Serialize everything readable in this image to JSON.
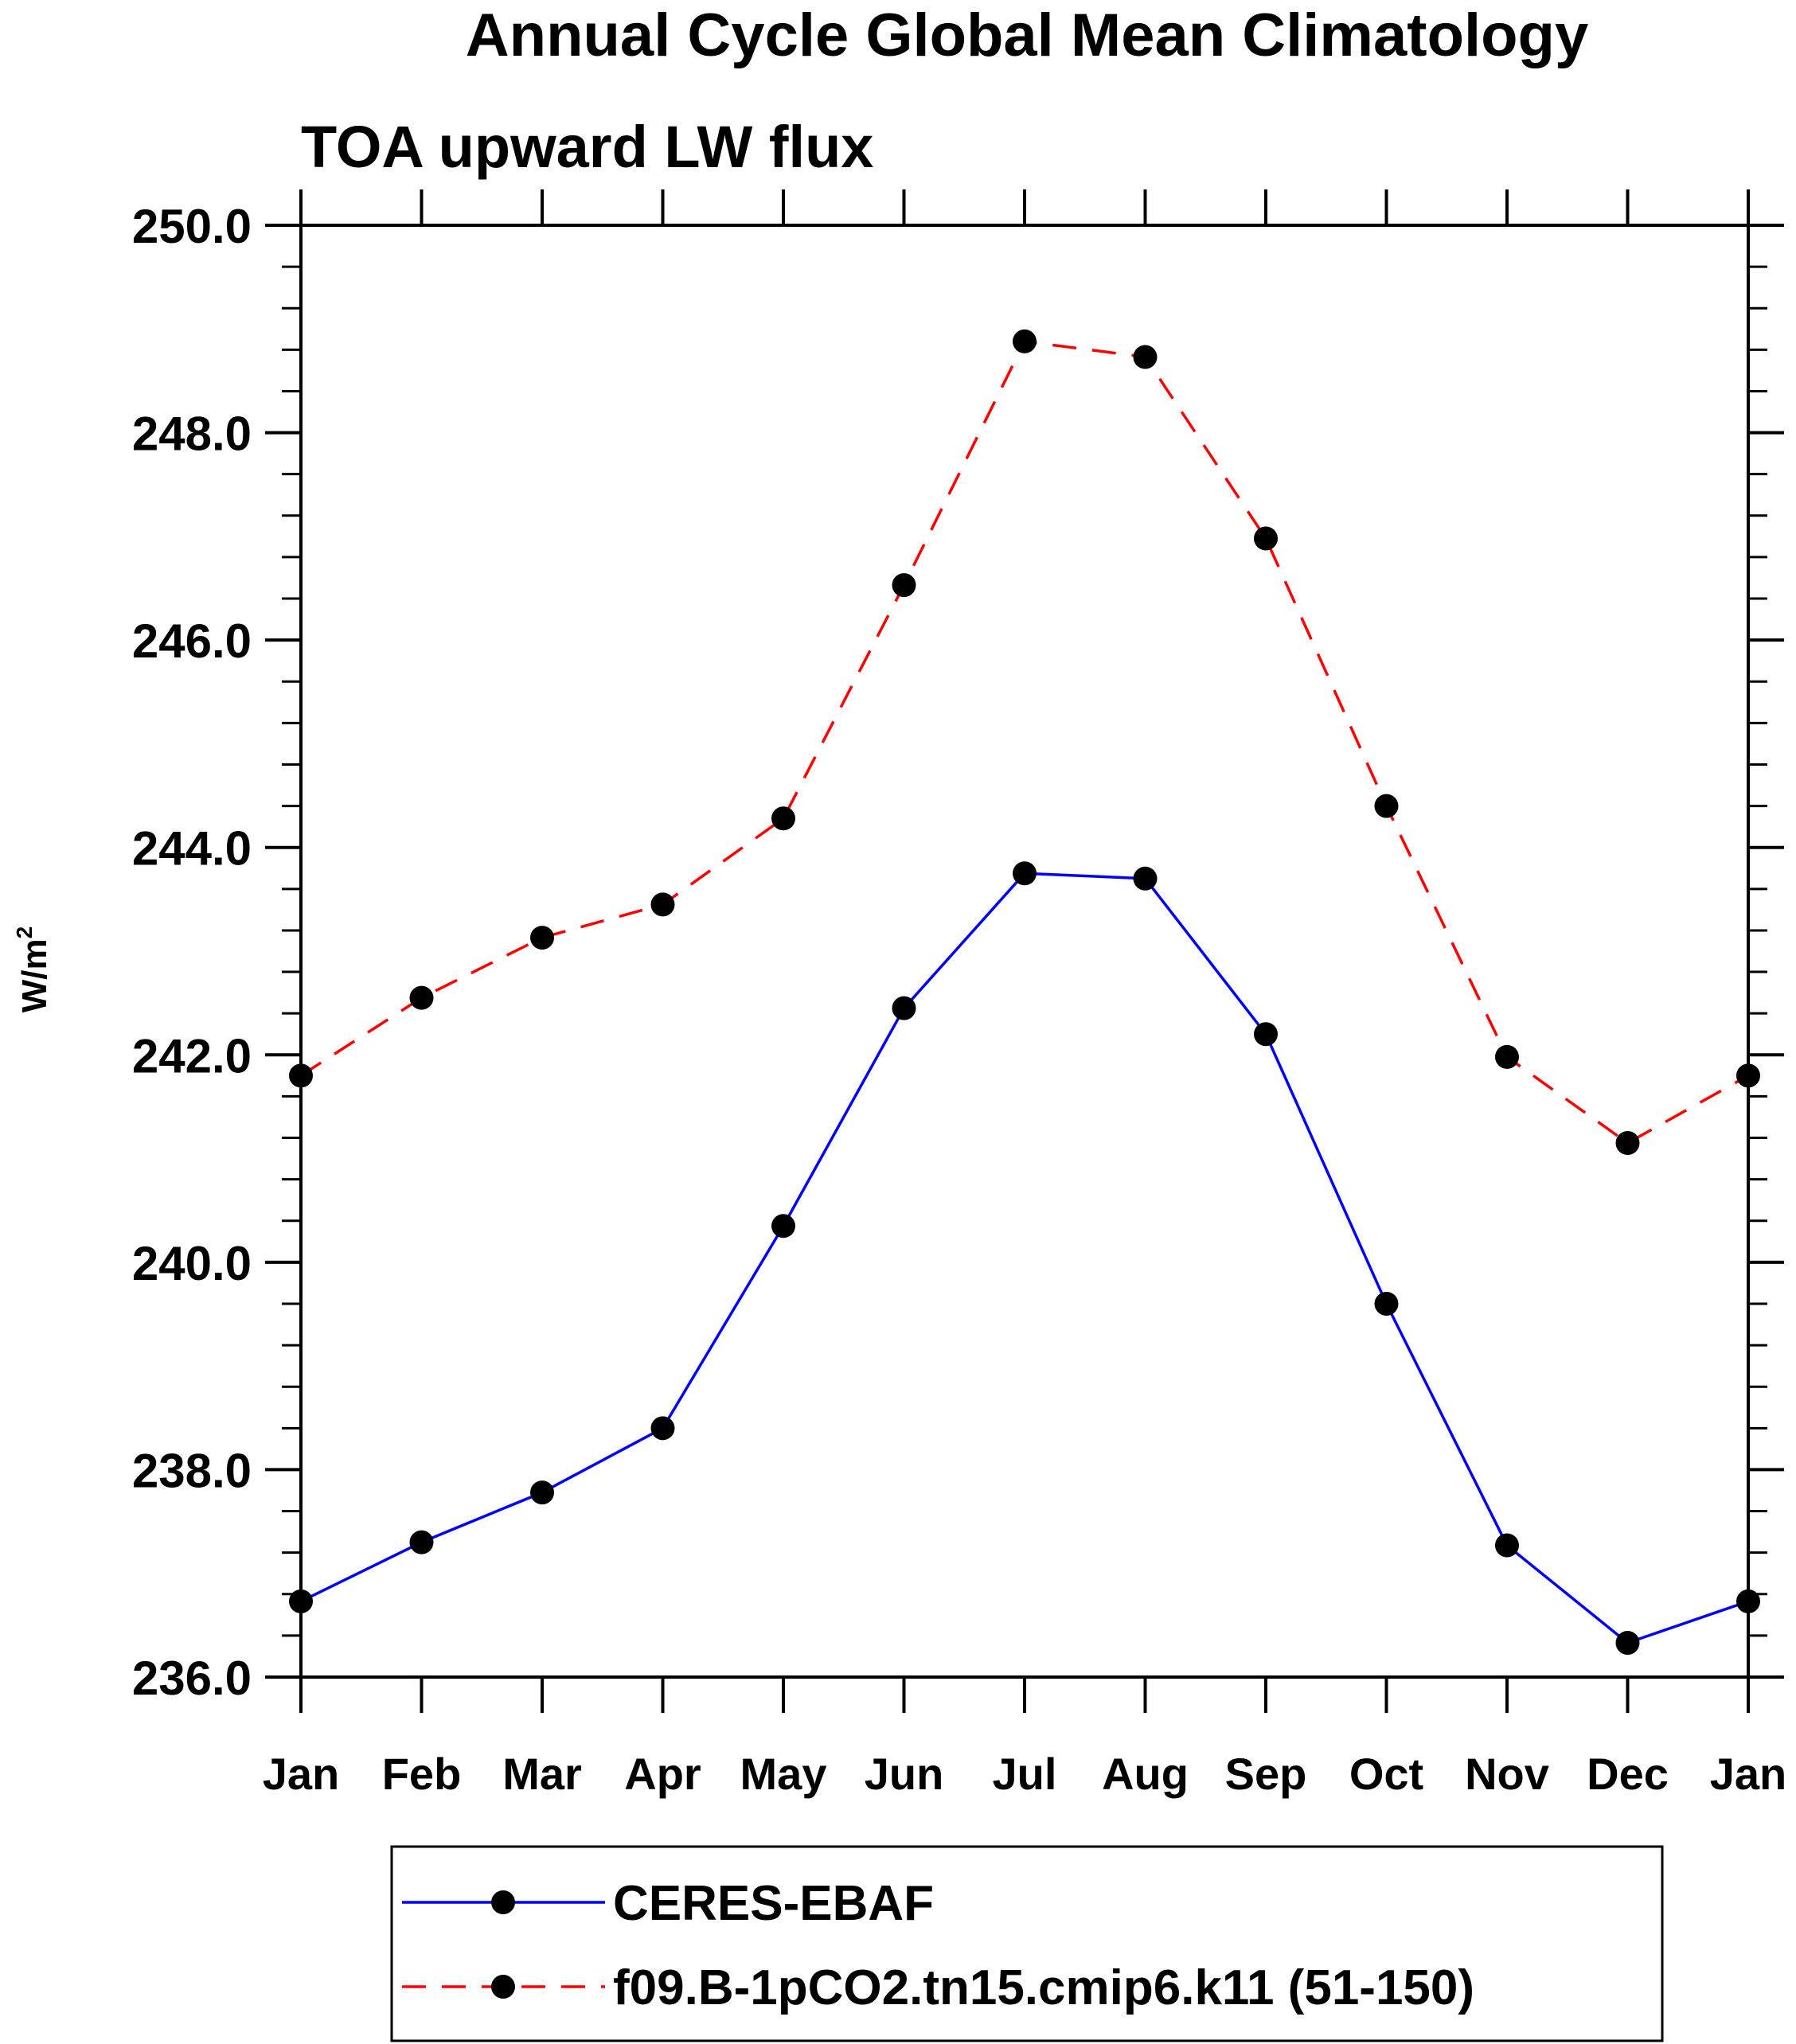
{
  "chart_data": {
    "type": "line",
    "title": "Annual Cycle Global Mean Climatology",
    "subtitle": "TOA upward LW flux",
    "xlabel": "",
    "ylabel": "W/m",
    "ylabel_superscript": "2",
    "categories": [
      "Jan",
      "Feb",
      "Mar",
      "Apr",
      "May",
      "Jun",
      "Jul",
      "Aug",
      "Sep",
      "Oct",
      "Nov",
      "Dec",
      "Jan"
    ],
    "ylim": [
      236.0,
      250.0
    ],
    "yticks": [
      236.0,
      238.0,
      240.0,
      242.0,
      244.0,
      246.0,
      248.0,
      250.0
    ],
    "ytick_labels": [
      "236.0",
      "238.0",
      "240.0",
      "242.0",
      "244.0",
      "246.0",
      "248.0",
      "250.0"
    ],
    "y_minor_step": 0.4,
    "grid": false,
    "legend_position": "bottom",
    "marker": "filled-circle",
    "series": [
      {
        "name": "CERES-EBAF",
        "color": "#0000ff",
        "line_style": "solid",
        "values": [
          236.73,
          237.3,
          237.78,
          238.4,
          240.35,
          242.45,
          243.75,
          243.7,
          242.2,
          239.6,
          237.27,
          236.33,
          236.73
        ]
      },
      {
        "name": "f09.B-1pCO2.tn15.cmip6.k11 (51-150)",
        "color": "#ff0000",
        "line_style": "dashed",
        "values": [
          241.8,
          242.55,
          243.13,
          243.45,
          244.28,
          246.53,
          248.88,
          248.73,
          246.98,
          244.4,
          241.98,
          241.15,
          241.8
        ]
      }
    ]
  }
}
